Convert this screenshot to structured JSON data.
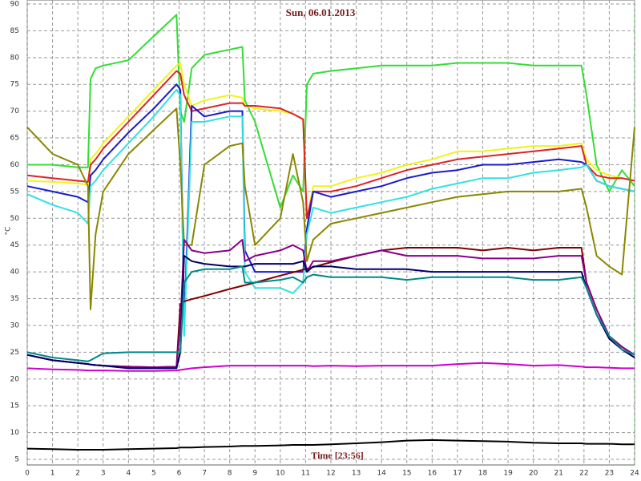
{
  "chart_data": {
    "type": "line",
    "title": "Sun, 06.01.2013",
    "x_label": "Time [23:56]",
    "y_label": "°C",
    "x": [
      0,
      1,
      2,
      2.4,
      2.5,
      2.7,
      3,
      4,
      5,
      5.9,
      6.05,
      6.2,
      6.5,
      7,
      8,
      8.5,
      8.6,
      9,
      10,
      10.5,
      10.9,
      11.05,
      11.3,
      12,
      13,
      14,
      15,
      16,
      17,
      18,
      19,
      20,
      21,
      21.9,
      22.1,
      22.5,
      23,
      23.5,
      24
    ],
    "series": [
      {
        "color": "#33dd33",
        "values": [
          60,
          60,
          59.5,
          59.5,
          76,
          78,
          78.5,
          79.5,
          84,
          88,
          70,
          68,
          78,
          80.5,
          81.5,
          82,
          72,
          68,
          52,
          58,
          55,
          75,
          77,
          77.5,
          78,
          78.5,
          78.5,
          78.5,
          79,
          79,
          79,
          78.5,
          78.5,
          78.5,
          73,
          60,
          55,
          59,
          56
        ]
      },
      {
        "color": "#f2f21a",
        "values": [
          57,
          56.8,
          56.5,
          56.3,
          61,
          62,
          64,
          69,
          74,
          78.5,
          79,
          75,
          71,
          72,
          73,
          72.5,
          71,
          70.5,
          70,
          69.5,
          68.5,
          50,
          56,
          56,
          57.5,
          58.5,
          60,
          61,
          62.5,
          62.5,
          63,
          63.5,
          63.5,
          64,
          61,
          59,
          58,
          57.5,
          57
        ]
      },
      {
        "color": "#dd2222",
        "values": [
          58,
          57.5,
          57,
          56.8,
          60,
          61,
          63,
          68,
          73,
          77.5,
          77,
          73,
          70,
          70.5,
          71.5,
          71.5,
          71,
          71,
          70.5,
          69.5,
          68.5,
          50,
          55,
          55,
          56,
          57.5,
          59,
          60,
          61,
          61.5,
          62,
          62.5,
          63,
          63.5,
          60,
          58,
          57.5,
          57.5,
          57
        ]
      },
      {
        "color": "#1a1acc",
        "values": [
          56,
          55,
          54,
          53,
          58,
          59,
          61,
          66,
          70.5,
          75,
          74,
          30,
          71,
          69,
          70,
          70,
          44,
          40,
          40,
          40,
          40,
          48,
          55,
          54,
          55,
          56,
          57.5,
          58.5,
          59,
          60,
          60,
          60.5,
          61,
          60.5,
          60,
          57,
          56,
          55.5,
          55
        ]
      },
      {
        "color": "#33e0e0",
        "values": [
          54.5,
          52.5,
          51,
          49,
          56,
          57,
          59,
          64,
          69,
          74,
          73,
          28,
          68,
          68,
          69,
          69,
          40,
          37,
          37,
          36,
          38,
          47,
          52,
          51,
          52,
          53,
          54,
          55.5,
          56.5,
          57.5,
          57.5,
          58.5,
          59,
          59.5,
          60,
          57,
          56,
          55.5,
          55
        ]
      },
      {
        "color": "#888800",
        "values": [
          67,
          62,
          60,
          56,
          33,
          47,
          55,
          62,
          66.5,
          70.5,
          60,
          45,
          45,
          60,
          63.5,
          64,
          56,
          45,
          50,
          62,
          53,
          42,
          46,
          49,
          50,
          51,
          52,
          53,
          54,
          54.5,
          55,
          55,
          55,
          55.5,
          52,
          43,
          41,
          39.5,
          67
        ]
      },
      {
        "color": "#800000",
        "values": [
          24.5,
          23.5,
          23,
          22.8,
          22.7,
          22.6,
          22.5,
          22.3,
          22.2,
          22.3,
          34,
          34.5,
          34.9,
          35.5,
          36.8,
          37.4,
          37.5,
          38,
          39.3,
          39.9,
          40.4,
          40.6,
          40.9,
          41.8,
          43,
          44,
          44.5,
          44.5,
          44.5,
          44,
          44.5,
          44,
          44.5,
          44.5,
          38,
          33,
          28,
          26,
          24.5
        ]
      },
      {
        "color": "#880088",
        "values": [
          24.5,
          23.5,
          23,
          22.8,
          22.7,
          22.6,
          22.5,
          22.3,
          22.2,
          22.3,
          30,
          46,
          44,
          43.5,
          44,
          46,
          42,
          43,
          44,
          45,
          44,
          40,
          42,
          42,
          43,
          44,
          43,
          43,
          43,
          42.5,
          42.5,
          42.5,
          43,
          43,
          38,
          33,
          28,
          26,
          24.5
        ]
      },
      {
        "color": "#000066",
        "values": [
          24.5,
          23.5,
          23,
          22.8,
          22.7,
          22.6,
          22.5,
          22,
          22,
          22,
          25,
          43,
          42,
          41.5,
          41,
          41,
          41,
          41.5,
          41.5,
          41.5,
          42,
          40,
          41,
          41,
          40.5,
          40.5,
          40.5,
          40,
          40,
          40,
          40,
          40,
          40,
          40,
          37,
          32,
          27.5,
          25.5,
          24
        ]
      },
      {
        "color": "#008888",
        "values": [
          25,
          24,
          23.5,
          23.3,
          23.5,
          24,
          24.8,
          25,
          25,
          25,
          25,
          38,
          40,
          40.5,
          40.5,
          41,
          38,
          38,
          38.5,
          39,
          38,
          39,
          39.5,
          39,
          39,
          39,
          38.5,
          39,
          39,
          39,
          39,
          38.5,
          38.5,
          39,
          37,
          32,
          28,
          25.5,
          24.5
        ]
      },
      {
        "color": "#cc00cc",
        "values": [
          22,
          21.8,
          21.7,
          21.6,
          21.6,
          21.6,
          21.6,
          21.5,
          21.5,
          21.6,
          21.7,
          21.8,
          22,
          22.2,
          22.5,
          22.5,
          22.5,
          22.5,
          22.5,
          22.5,
          22.5,
          22.5,
          22.4,
          22.5,
          22.4,
          22.5,
          22.5,
          22.5,
          22.8,
          23,
          22.8,
          22.5,
          22.6,
          22.3,
          22.2,
          22.2,
          22.1,
          22,
          22
        ]
      },
      {
        "color": "#000000",
        "values": [
          7,
          6.9,
          6.8,
          6.8,
          6.8,
          6.8,
          6.8,
          6.9,
          7,
          7.1,
          7.2,
          7.2,
          7.2,
          7.3,
          7.4,
          7.5,
          7.5,
          7.5,
          7.6,
          7.7,
          7.7,
          7.7,
          7.7,
          7.8,
          8,
          8.2,
          8.5,
          8.6,
          8.5,
          8.4,
          8.3,
          8.1,
          8,
          8,
          7.9,
          7.9,
          7.9,
          7.8,
          7.8
        ]
      }
    ],
    "xlim": [
      0,
      24
    ],
    "xticks": [
      0,
      1,
      2,
      3,
      4,
      5,
      6,
      7,
      8,
      9,
      10,
      11,
      12,
      13,
      14,
      15,
      16,
      17,
      18,
      19,
      20,
      21,
      22,
      23,
      24
    ],
    "ylim": [
      5,
      90
    ],
    "yticks": [
      5,
      10,
      15,
      20,
      25,
      30,
      35,
      40,
      45,
      50,
      55,
      60,
      65,
      70,
      75,
      80,
      85,
      90
    ],
    "grid": true
  }
}
